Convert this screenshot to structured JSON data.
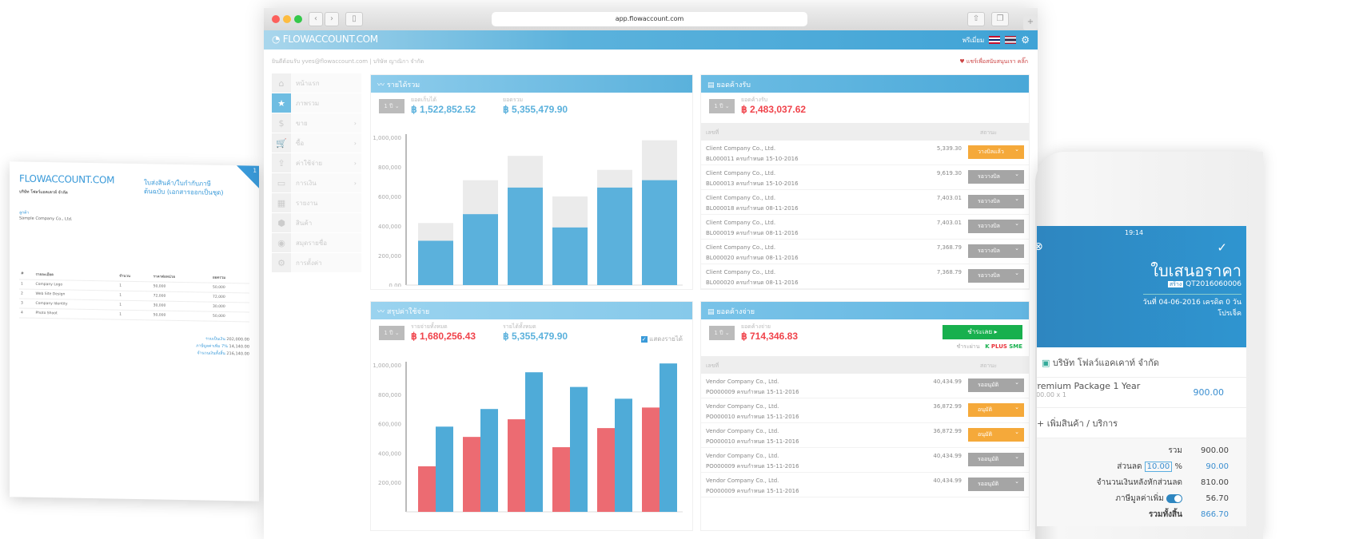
{
  "browser": {
    "url": "app.flowaccount.com",
    "brand": "FLOWACCOUNT.COM",
    "header_right": "พรีเมี่ยม",
    "welcome": "ยินดีต้อนรับ yves@flowaccount.com | บริษัท ญาณิกา จำกัด",
    "support": "แชร์เพื่อสนับสนุนเรา คลิ๊ก"
  },
  "sidebar": [
    {
      "icon": "home-icon",
      "glyph": "⌂",
      "label": "หน้าแรก"
    },
    {
      "icon": "star-icon",
      "glyph": "★",
      "label": "ภาพรวม",
      "active": true
    },
    {
      "icon": "dollar-icon",
      "glyph": "$",
      "label": "ขาย",
      "chev": true
    },
    {
      "icon": "cart-icon",
      "glyph": "🛒",
      "label": "ซื้อ",
      "chev": true
    },
    {
      "icon": "upload-icon",
      "glyph": "⇪",
      "label": "ค่าใช้จ่าย",
      "chev": true
    },
    {
      "icon": "card-icon",
      "glyph": "▭",
      "label": "การเงิน",
      "chev": true
    },
    {
      "icon": "report-icon",
      "glyph": "▦",
      "label": "รายงาน"
    },
    {
      "icon": "box-icon",
      "glyph": "⬢",
      "label": "สินค้า"
    },
    {
      "icon": "contacts-icon",
      "glyph": "◉",
      "label": "สมุดรายชื่อ"
    },
    {
      "icon": "gear-icon",
      "glyph": "⚙",
      "label": "การตั้งค่า"
    }
  ],
  "revenue": {
    "title": "รายได้รวม",
    "period": "1 ปี",
    "received_label": "ยอดเก็บได้",
    "received": "฿ 1,522,852.52",
    "total_label": "ยอดรวม",
    "total": "฿ 5,355,479.90"
  },
  "receivables": {
    "title": "ยอดค้างรับ",
    "period": "1 ปี",
    "label": "ยอดค้างรับ",
    "value": "฿ 2,483,037.62",
    "col_no": "เลขที่",
    "col_status": "สถานะ",
    "rows": [
      {
        "company": "Client Company Co., Ltd.",
        "doc": "BL000011 ครบกำหนด 15-10-2016",
        "amount": "5,339.30",
        "status": "วางบิลแล้ว",
        "color": "#f5a93a"
      },
      {
        "company": "Client Company Co., Ltd.",
        "doc": "BL000013 ครบกำหนด 15-10-2016",
        "amount": "9,619.30",
        "status": "รอวางบิล",
        "color": "#a5a5a5"
      },
      {
        "company": "Client Company Co., Ltd.",
        "doc": "BL000018 ครบกำหนด 08-11-2016",
        "amount": "7,403.01",
        "status": "รอวางบิล",
        "color": "#a5a5a5"
      },
      {
        "company": "Client Company Co., Ltd.",
        "doc": "BL000019 ครบกำหนด 08-11-2016",
        "amount": "7,403.01",
        "status": "รอวางบิล",
        "color": "#a5a5a5"
      },
      {
        "company": "Client Company Co., Ltd.",
        "doc": "BL000020 ครบกำหนด 08-11-2016",
        "amount": "7,368.79",
        "status": "รอวางบิล",
        "color": "#a5a5a5"
      },
      {
        "company": "Client Company Co., Ltd.",
        "doc": "BL000020 ครบกำหนด 08-11-2016",
        "amount": "7,368.79",
        "status": "รอวางบิล",
        "color": "#a5a5a5"
      }
    ]
  },
  "expenses": {
    "title": "สรุปค่าใช้จ่าย",
    "period": "1 ปี",
    "expense_label": "รายจ่ายทั้งหมด",
    "expense": "฿ 1,680,256.43",
    "income_label": "รายได้ทั้งหมด",
    "income": "฿ 5,355,479.90",
    "show_income_label": "แสดงรายได้",
    "show_income": true
  },
  "payables": {
    "title": "ยอดค้างจ่าย",
    "period": "1 ปี",
    "label": "ยอดค้างจ่าย",
    "value": "฿ 714,346.83",
    "pay_button": "ชำระเลย ▸",
    "pay_via": "ชำระผ่าน",
    "kplus": {
      "k": "K",
      "plus": "PLUS",
      "sme": "SME"
    },
    "col_no": "เลขที่",
    "col_status": "สถานะ",
    "rows": [
      {
        "company": "Vendor Company Co., Ltd.",
        "doc": "PO000009 ครบกำหนด 15-11-2016",
        "amount": "40,434.99",
        "status": "รออนุมัติ",
        "color": "#a5a5a5"
      },
      {
        "company": "Vendor Company Co., Ltd.",
        "doc": "PO000010 ครบกำหนด 15-11-2016",
        "amount": "36,872.99",
        "status": "อนุมัติ",
        "color": "#f5a93a"
      },
      {
        "company": "Vendor Company Co., Ltd.",
        "doc": "PO000010 ครบกำหนด 15-11-2016",
        "amount": "36,872.99",
        "status": "อนุมัติ",
        "color": "#f5a93a"
      },
      {
        "company": "Vendor Company Co., Ltd.",
        "doc": "PO000009 ครบกำหนด 15-11-2016",
        "amount": "40,434.99",
        "status": "รออนุมัติ",
        "color": "#a5a5a5"
      },
      {
        "company": "Vendor Company Co., Ltd.",
        "doc": "PO000009 ครบกำหนด 15-11-2016",
        "amount": "40,434.99",
        "status": "รออนุมัติ",
        "color": "#a5a5a5"
      }
    ]
  },
  "chart_data": [
    {
      "type": "bar",
      "stacked_overlay": true,
      "ylim": [
        0,
        1000000
      ],
      "yticks": [
        "0.00",
        "200,000",
        "400,000",
        "600,000",
        "800,000",
        "1,000,000"
      ],
      "series": [
        {
          "values": [
            420000,
            710000,
            875000,
            600000,
            780000,
            980000
          ],
          "color": "#ebebeb"
        },
        {
          "values": [
            300000,
            480000,
            660000,
            390000,
            660000,
            710000
          ],
          "color": "#5bb1dc"
        }
      ]
    },
    {
      "type": "bar",
      "ylim": [
        0,
        1000000
      ],
      "yticks": [
        "200,000",
        "400,000",
        "600,000",
        "800,000",
        "1,000,000"
      ],
      "series": [
        {
          "values": [
            310000,
            510000,
            630000,
            440000,
            570000,
            710000
          ],
          "color": "#ec6b72"
        },
        {
          "values": [
            580000,
            700000,
            950000,
            850000,
            770000,
            1010000
          ],
          "color": "#4fabd8"
        }
      ]
    }
  ],
  "phone": {
    "time": "19:14",
    "title": "ใบเสนอราคา",
    "badge": "สร้าง",
    "doc_no": "QT2016060006",
    "date_line": "วันที่ 04-06-2016 เครดิต 0 วัน",
    "project": "โปรเจ็ค",
    "company": "บริษัท โฟลว์แอคเคาท์ จำกัด",
    "item": "Premium Package 1 Year",
    "item_sub": "900.00 x 1",
    "item_price": "900.00",
    "add_item": "+ เพิ่มสินค้า / บริการ",
    "sum_label": "รวม",
    "sum": "900.00",
    "discount_label": "ส่วนลด",
    "discount_pct": "10.00",
    "pct": "%",
    "discount": "90.00",
    "after_label": "จำนวนเงินหลังหักส่วนลด",
    "after": "810.00",
    "vat_label": "ภาษีมูลค่าเพิ่ม",
    "vat": "56.70",
    "vat_on": true,
    "grand_label": "รวมทั้งสิ้น",
    "grand": "866.70"
  },
  "document": {
    "brand": "FLOWACCOUNT.COM",
    "title": "ใบส่งสินค้า/ใบกำกับภาษี ต้นฉบับ (เอกสารออกเป็นชุด)",
    "page": "1",
    "company": "บริษัท โฟลว์แอคเคาท์ จำกัด",
    "customer_label": "ลูกค้า",
    "customer": "Sample Company Co., Ltd.",
    "cols": [
      "#",
      "รายละเอียด",
      "จำนวน",
      "ราคาต่อหน่วย",
      "ยอดรวม"
    ],
    "items": [
      [
        "1",
        "Company Logo",
        "1",
        "50,000",
        "50,000"
      ],
      [
        "2",
        "Web Site Design",
        "1",
        "72,000",
        "72,000"
      ],
      [
        "3",
        "Company Identity",
        "1",
        "30,000",
        "30,000"
      ],
      [
        "4",
        "Photo Shoot",
        "1",
        "50,000",
        "50,000"
      ]
    ],
    "subtotal_label": "รวมเป็นเงิน",
    "subtotal": "202,000.00",
    "vat_label": "ภาษีมูลค่าเพิ่ม 7%",
    "vat": "14,140.00",
    "grand_label": "จำนวนเงินทั้งสิ้น",
    "grand": "216,140.00"
  }
}
